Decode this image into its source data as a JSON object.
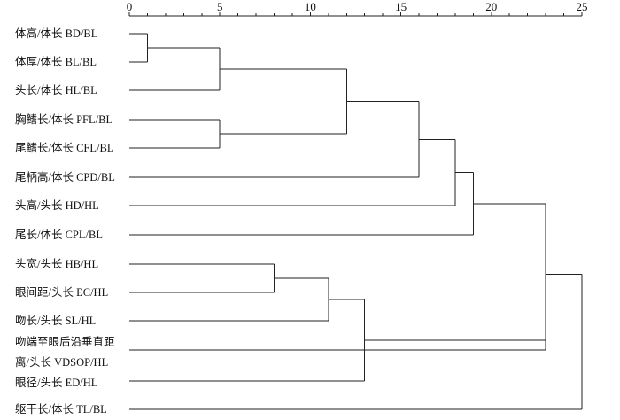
{
  "chart_data": {
    "type": "dendrogram",
    "title": "",
    "xlabel": "",
    "ylabel": "",
    "xlim": [
      0,
      25
    ],
    "x_ticks": [
      0,
      5,
      10,
      15,
      20,
      25
    ],
    "grid": false,
    "legend": "none",
    "line_color": "#222222",
    "leaves": [
      {
        "label_lines": [
          "体高/体长 BD/BL"
        ]
      },
      {
        "label_lines": [
          "体厚/体长 BL/BL"
        ]
      },
      {
        "label_lines": [
          "头长/体长 HL/BL"
        ]
      },
      {
        "label_lines": [
          "胸鳍长/体长 PFL/BL"
        ]
      },
      {
        "label_lines": [
          "尾鳍长/体长 CFL/BL"
        ]
      },
      {
        "label_lines": [
          "尾柄高/体长 CPD/BL"
        ]
      },
      {
        "label_lines": [
          "头高/头长 HD/HL"
        ]
      },
      {
        "label_lines": [
          "尾长/体长 CPL/BL"
        ]
      },
      {
        "label_lines": [
          "头宽/头长 HB/HL"
        ]
      },
      {
        "label_lines": [
          "眼间距/头长 EC/HL"
        ]
      },
      {
        "label_lines": [
          "吻长/头长 SL/HL"
        ]
      },
      {
        "label_lines": [
          "吻端至眼后沿垂直距",
          "离/头长 VDSOP/HL"
        ]
      },
      {
        "label_lines": [
          "眼径/头长 ED/HL"
        ]
      },
      {
        "label_lines": [
          "躯干长/体长 TL/BL"
        ]
      }
    ],
    "merges": [
      {
        "id": "c1",
        "left": 0,
        "right": 1,
        "distance": 1
      },
      {
        "id": "c2",
        "left": "c1",
        "right": 2,
        "distance": 5
      },
      {
        "id": "c3",
        "left": 3,
        "right": 4,
        "distance": 5
      },
      {
        "id": "c4",
        "left": "c2",
        "right": "c3",
        "distance": 12
      },
      {
        "id": "c5",
        "left": "c4",
        "right": 5,
        "distance": 16
      },
      {
        "id": "c6",
        "left": "c5",
        "right": 6,
        "distance": 18
      },
      {
        "id": "c7",
        "left": "c6",
        "right": 7,
        "distance": 19
      },
      {
        "id": "c8",
        "left": 8,
        "right": 9,
        "distance": 8
      },
      {
        "id": "c9",
        "left": "c8",
        "right": 10,
        "distance": 11
      },
      {
        "id": "c10",
        "left": "c9",
        "right": 12,
        "distance": 13
      },
      {
        "id": "c11",
        "left": "c10",
        "right": 11,
        "distance": 23
      },
      {
        "id": "c12",
        "left": "c7",
        "right": "c11",
        "distance": 23
      },
      {
        "id": "c13",
        "left": "c12",
        "right": 13,
        "distance": 25
      }
    ]
  }
}
